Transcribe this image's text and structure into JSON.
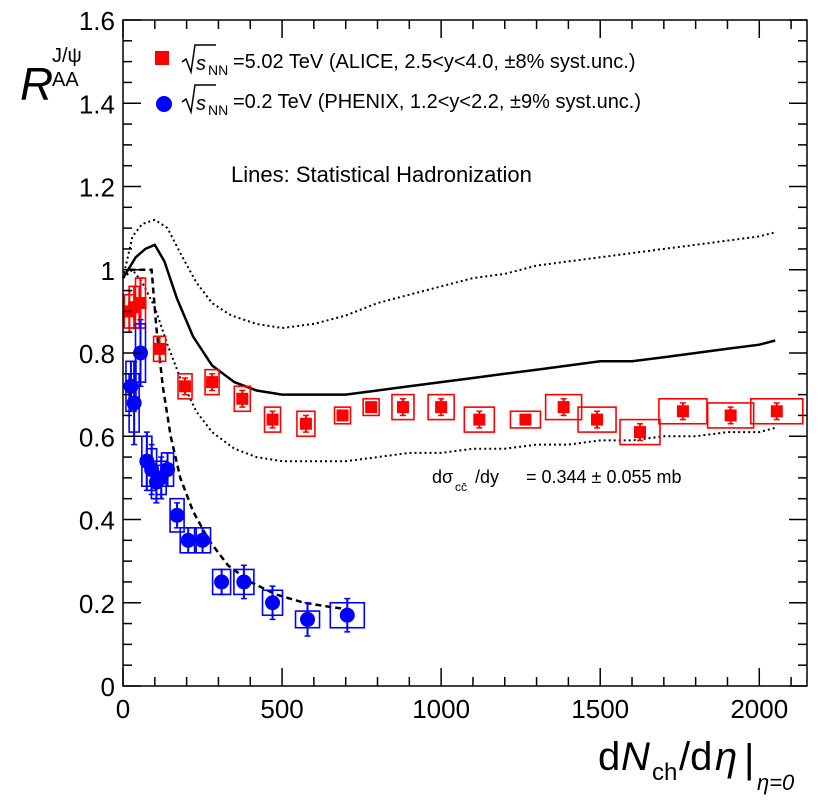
{
  "chart_data": {
    "type": "scatter",
    "xlabel": "dN_ch/dη |η=0",
    "xlabel_parts": {
      "d1": "d",
      "N": "N",
      "ch": "ch",
      "slash_d": "/d",
      "eta": "η",
      "bar": "|",
      "sub": "η=0"
    },
    "ylabel_parts": {
      "R": "R",
      "sup": "J/ψ",
      "sub": "AA"
    },
    "xlim": [
      0,
      2150
    ],
    "ylim": [
      0,
      1.6
    ],
    "x_ticks": [
      0,
      500,
      1000,
      1500,
      2000
    ],
    "y_ticks": [
      0,
      0.2,
      0.4,
      0.6,
      0.8,
      1,
      1.2,
      1.4,
      1.6
    ],
    "y_tick_labels": [
      "0",
      "0.2",
      "0.4",
      "0.6",
      "0.8",
      "1",
      "1.2",
      "1.4",
      "1.6"
    ],
    "x_tick_labels": [
      "0",
      "500",
      "1000",
      "1500",
      "2000"
    ],
    "annotation": "Lines: Statistical Hadronization",
    "cross_section": {
      "prefix": "dσ",
      "sub": "cc̄",
      "mid": "/dy",
      "value": "= 0.344 ± 0.055 mb"
    },
    "legend": [
      {
        "name": "alice",
        "marker": "square",
        "color": "#ff0000",
        "sqrt": "s",
        "sqrt_sub": "NN",
        "text": "=5.02 TeV (ALICE, 2.5<y<4.0, ±8% syst.unc.)"
      },
      {
        "name": "phenix",
        "marker": "circle",
        "color": "#0000ff",
        "sqrt": "s",
        "sqrt_sub": "NN",
        "text": "=0.2 TeV (PHENIX, 1.2<y<2.2, ±9% syst.unc.)"
      }
    ],
    "series": [
      {
        "name": "ALICE 5.02 TeV",
        "marker": "square",
        "color": "#ff0000",
        "points": [
          {
            "x": 20,
            "y": 0.9,
            "stat": 0.05,
            "sysw": 10,
            "sysh": 0.04
          },
          {
            "x": 35,
            "y": 0.91,
            "stat": 0.05,
            "sysw": 10,
            "sysh": 0.05
          },
          {
            "x": 55,
            "y": 0.92,
            "stat": 0.06,
            "sysw": 10,
            "sysh": 0.06
          },
          {
            "x": 115,
            "y": 0.81,
            "stat": 0.03,
            "sysw": 12,
            "sysh": 0.03
          },
          {
            "x": 195,
            "y": 0.72,
            "stat": 0.02,
            "sysw": 14,
            "sysh": 0.03
          },
          {
            "x": 280,
            "y": 0.73,
            "stat": 0.02,
            "sysw": 14,
            "sysh": 0.03
          },
          {
            "x": 375,
            "y": 0.69,
            "stat": 0.02,
            "sysw": 16,
            "sysh": 0.03
          },
          {
            "x": 470,
            "y": 0.64,
            "stat": 0.02,
            "sysw": 16,
            "sysh": 0.03
          },
          {
            "x": 575,
            "y": 0.63,
            "stat": 0.02,
            "sysw": 18,
            "sysh": 0.03
          },
          {
            "x": 690,
            "y": 0.65,
            "stat": 0.01,
            "sysw": 16,
            "sysh": 0.02
          },
          {
            "x": 780,
            "y": 0.67,
            "stat": 0.01,
            "sysw": 16,
            "sysh": 0.02
          },
          {
            "x": 880,
            "y": 0.67,
            "stat": 0.02,
            "sysw": 22,
            "sysh": 0.03
          },
          {
            "x": 1000,
            "y": 0.67,
            "stat": 0.02,
            "sysw": 26,
            "sysh": 0.03
          },
          {
            "x": 1120,
            "y": 0.64,
            "stat": 0.02,
            "sysw": 30,
            "sysh": 0.03
          },
          {
            "x": 1265,
            "y": 0.64,
            "stat": 0.01,
            "sysw": 30,
            "sysh": 0.02
          },
          {
            "x": 1385,
            "y": 0.67,
            "stat": 0.02,
            "sysw": 36,
            "sysh": 0.03
          },
          {
            "x": 1490,
            "y": 0.64,
            "stat": 0.02,
            "sysw": 38,
            "sysh": 0.03
          },
          {
            "x": 1625,
            "y": 0.61,
            "stat": 0.02,
            "sysw": 40,
            "sysh": 0.03
          },
          {
            "x": 1760,
            "y": 0.66,
            "stat": 0.02,
            "sysw": 48,
            "sysh": 0.03
          },
          {
            "x": 1910,
            "y": 0.65,
            "stat": 0.02,
            "sysw": 46,
            "sysh": 0.03
          },
          {
            "x": 2055,
            "y": 0.66,
            "stat": 0.02,
            "sysw": 52,
            "sysh": 0.03
          }
        ]
      },
      {
        "name": "PHENIX 0.2 TeV",
        "marker": "circle",
        "color": "#0000ff",
        "points": [
          {
            "x": 25,
            "y": 0.72,
            "stat": 0.06,
            "sysw": 10,
            "sysh": 0.06
          },
          {
            "x": 35,
            "y": 0.68,
            "stat": 0.1,
            "sysw": 10,
            "sysh": 0.07
          },
          {
            "x": 55,
            "y": 0.8,
            "stat": 0.08,
            "sysw": 10,
            "sysh": 0.07
          },
          {
            "x": 75,
            "y": 0.54,
            "stat": 0.07,
            "sysw": 10,
            "sysh": 0.06
          },
          {
            "x": 90,
            "y": 0.52,
            "stat": 0.06,
            "sysw": 10,
            "sysh": 0.05
          },
          {
            "x": 105,
            "y": 0.49,
            "stat": 0.05,
            "sysw": 10,
            "sysh": 0.04
          },
          {
            "x": 120,
            "y": 0.5,
            "stat": 0.05,
            "sysw": 10,
            "sysh": 0.04
          },
          {
            "x": 140,
            "y": 0.52,
            "stat": 0.04,
            "sysw": 12,
            "sysh": 0.04
          },
          {
            "x": 170,
            "y": 0.41,
            "stat": 0.03,
            "sysw": 14,
            "sysh": 0.04
          },
          {
            "x": 205,
            "y": 0.35,
            "stat": 0.03,
            "sysw": 16,
            "sysh": 0.03
          },
          {
            "x": 250,
            "y": 0.35,
            "stat": 0.03,
            "sysw": 16,
            "sysh": 0.03
          },
          {
            "x": 310,
            "y": 0.25,
            "stat": 0.03,
            "sysw": 18,
            "sysh": 0.03
          },
          {
            "x": 380,
            "y": 0.25,
            "stat": 0.04,
            "sysw": 20,
            "sysh": 0.03
          },
          {
            "x": 470,
            "y": 0.2,
            "stat": 0.04,
            "sysw": 20,
            "sysh": 0.03
          },
          {
            "x": 580,
            "y": 0.16,
            "stat": 0.04,
            "sysw": 24,
            "sysh": 0.02
          },
          {
            "x": 705,
            "y": 0.17,
            "stat": 0.04,
            "sysw": 34,
            "sysh": 0.03
          }
        ]
      }
    ],
    "curves": [
      {
        "name": "sh-central",
        "style": "solid",
        "points": [
          [
            0,
            0.98
          ],
          [
            40,
            1.03
          ],
          [
            70,
            1.05
          ],
          [
            100,
            1.06
          ],
          [
            130,
            1.02
          ],
          [
            170,
            0.93
          ],
          [
            220,
            0.84
          ],
          [
            280,
            0.77
          ],
          [
            350,
            0.73
          ],
          [
            420,
            0.71
          ],
          [
            500,
            0.7
          ],
          [
            600,
            0.7
          ],
          [
            700,
            0.7
          ],
          [
            800,
            0.71
          ],
          [
            900,
            0.72
          ],
          [
            1000,
            0.73
          ],
          [
            1100,
            0.74
          ],
          [
            1200,
            0.75
          ],
          [
            1300,
            0.76
          ],
          [
            1400,
            0.77
          ],
          [
            1500,
            0.78
          ],
          [
            1600,
            0.78
          ],
          [
            1700,
            0.79
          ],
          [
            1800,
            0.8
          ],
          [
            1900,
            0.81
          ],
          [
            2000,
            0.82
          ],
          [
            2050,
            0.83
          ]
        ]
      },
      {
        "name": "sh-upper",
        "style": "dotted",
        "points": [
          [
            0,
            0.98
          ],
          [
            30,
            1.08
          ],
          [
            60,
            1.11
          ],
          [
            100,
            1.12
          ],
          [
            140,
            1.1
          ],
          [
            180,
            1.04
          ],
          [
            230,
            0.97
          ],
          [
            280,
            0.92
          ],
          [
            340,
            0.89
          ],
          [
            420,
            0.87
          ],
          [
            500,
            0.86
          ],
          [
            600,
            0.87
          ],
          [
            700,
            0.89
          ],
          [
            800,
            0.92
          ],
          [
            900,
            0.94
          ],
          [
            1000,
            0.96
          ],
          [
            1100,
            0.98
          ],
          [
            1200,
            0.99
          ],
          [
            1300,
            1.01
          ],
          [
            1400,
            1.02
          ],
          [
            1500,
            1.03
          ],
          [
            1600,
            1.04
          ],
          [
            1700,
            1.05
          ],
          [
            1800,
            1.06
          ],
          [
            1900,
            1.07
          ],
          [
            2000,
            1.08
          ],
          [
            2050,
            1.09
          ]
        ]
      },
      {
        "name": "sh-lower",
        "style": "dotted",
        "points": [
          [
            0,
            0.98
          ],
          [
            30,
            1.0
          ],
          [
            60,
            0.97
          ],
          [
            100,
            0.91
          ],
          [
            140,
            0.82
          ],
          [
            180,
            0.74
          ],
          [
            230,
            0.66
          ],
          [
            280,
            0.61
          ],
          [
            350,
            0.57
          ],
          [
            420,
            0.55
          ],
          [
            500,
            0.54
          ],
          [
            600,
            0.54
          ],
          [
            700,
            0.54
          ],
          [
            800,
            0.55
          ],
          [
            900,
            0.56
          ],
          [
            1000,
            0.56
          ],
          [
            1100,
            0.57
          ],
          [
            1200,
            0.57
          ],
          [
            1300,
            0.58
          ],
          [
            1400,
            0.58
          ],
          [
            1500,
            0.59
          ],
          [
            1600,
            0.59
          ],
          [
            1700,
            0.6
          ],
          [
            1800,
            0.6
          ],
          [
            1900,
            0.61
          ],
          [
            2000,
            0.61
          ],
          [
            2050,
            0.62
          ]
        ]
      },
      {
        "name": "sh-rhic",
        "style": "dashed",
        "points": [
          [
            20,
            1.0
          ],
          [
            90,
            1.0
          ],
          [
            105,
            0.86
          ],
          [
            125,
            0.72
          ],
          [
            150,
            0.6
          ],
          [
            180,
            0.5
          ],
          [
            220,
            0.42
          ],
          [
            270,
            0.35
          ],
          [
            330,
            0.29
          ],
          [
            400,
            0.25
          ],
          [
            480,
            0.22
          ],
          [
            570,
            0.2
          ],
          [
            650,
            0.19
          ],
          [
            700,
            0.185
          ]
        ]
      }
    ]
  }
}
